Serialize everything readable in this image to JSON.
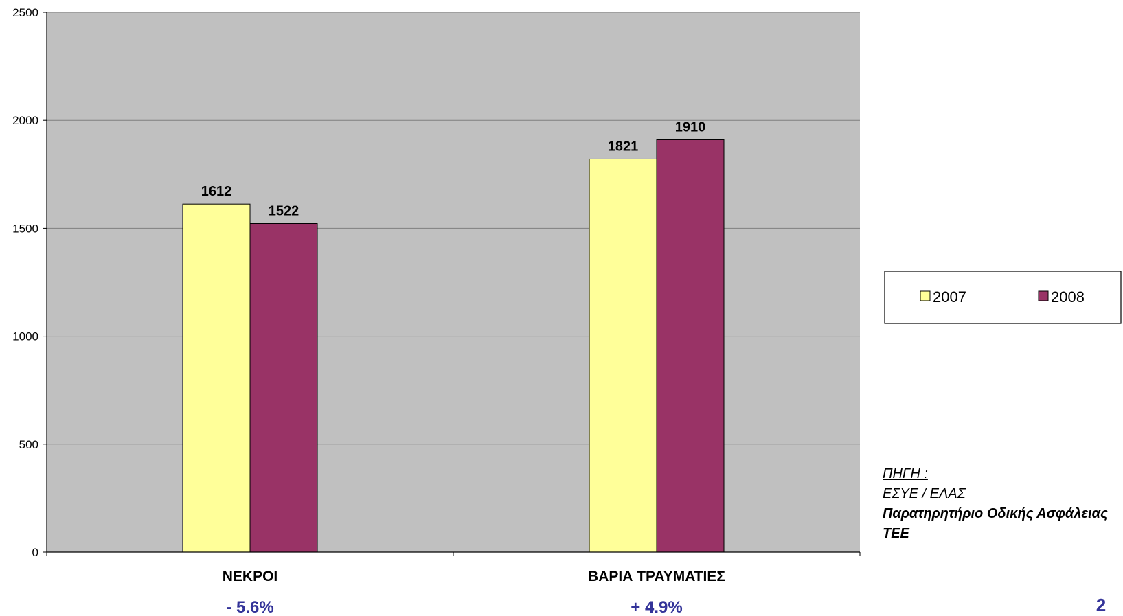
{
  "chart_data": {
    "type": "bar",
    "categories": [
      "ΝΕΚΡΟΙ",
      "ΒΑΡΙΑ ΤΡΑΥΜΑΤΙΕΣ"
    ],
    "series": [
      {
        "name": "2007",
        "values": [
          1612,
          1821
        ],
        "color": "#ffff99"
      },
      {
        "name": "2008",
        "values": [
          1522,
          1910
        ],
        "color": "#993366"
      }
    ],
    "data_labels": [
      [
        "1612",
        "1821"
      ],
      [
        "1522",
        "1910"
      ]
    ],
    "changes": [
      "- 5.6%",
      "+ 4.9%"
    ],
    "ylim": [
      0,
      2500
    ],
    "yticks": [
      0,
      500,
      1000,
      1500,
      2000,
      2500
    ],
    "grid": true,
    "plot_background": "#c0c0c0",
    "legend_position": "right"
  },
  "source": {
    "heading": "ΠΗΓΗ :",
    "line1": "ΕΣΥΕ / ΕΛΑΣ",
    "line2": "Παρατηρητήριο Οδικής Ασφάλειας",
    "line3": "ΤΕΕ"
  },
  "page_number": "2"
}
